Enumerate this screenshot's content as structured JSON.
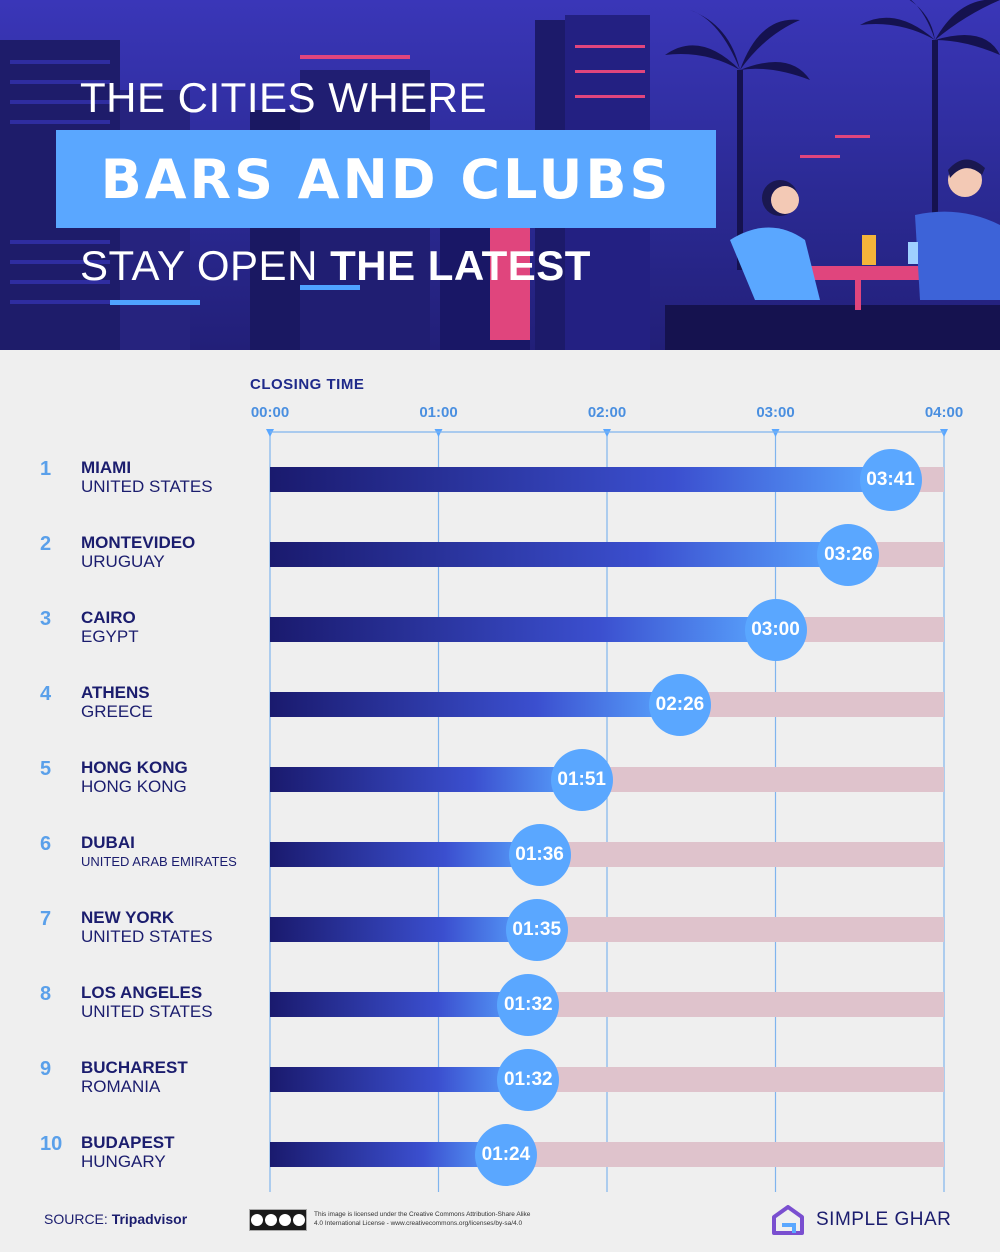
{
  "header": {
    "line1": "THE CITIES WHERE",
    "highlight": "BARS AND CLUBS",
    "line3_prefix": "STAY OPEN ",
    "line3_bold": "THE LATEST"
  },
  "colors": {
    "accent": "#5aa7ff",
    "navy": "#1b1d6e",
    "track": "#dfc3cc",
    "bar_start": "#1a1a6e",
    "header_bg": "#2f2d9e"
  },
  "chart_data": {
    "type": "bar",
    "orientation": "horizontal",
    "xlabel": "CLOSING TIME",
    "x_ticks": [
      "00:00",
      "01:00",
      "02:00",
      "03:00",
      "04:00"
    ],
    "xlim_hours": [
      0,
      4
    ],
    "rows": [
      {
        "rank": "1",
        "city": "MIAMI",
        "country": "UNITED STATES",
        "label": "03:41",
        "hours": 3.683
      },
      {
        "rank": "2",
        "city": "MONTEVIDEO",
        "country": "URUGUAY",
        "label": "03:26",
        "hours": 3.433
      },
      {
        "rank": "3",
        "city": "CAIRO",
        "country": "EGYPT",
        "label": "03:00",
        "hours": 3.0
      },
      {
        "rank": "4",
        "city": "ATHENS",
        "country": "GREECE",
        "label": "02:26",
        "hours": 2.433
      },
      {
        "rank": "5",
        "city": "HONG KONG",
        "country": "HONG KONG",
        "label": "01:51",
        "hours": 1.85
      },
      {
        "rank": "6",
        "city": "DUBAI",
        "country": "UNITED ARAB EMIRATES",
        "label": "01:36",
        "hours": 1.6
      },
      {
        "rank": "7",
        "city": "NEW YORK",
        "country": "UNITED STATES",
        "label": "01:35",
        "hours": 1.583
      },
      {
        "rank": "8",
        "city": "LOS ANGELES",
        "country": "UNITED STATES",
        "label": "01:32",
        "hours": 1.533
      },
      {
        "rank": "9",
        "city": "BUCHAREST",
        "country": "ROMANIA",
        "label": "01:32",
        "hours": 1.533
      },
      {
        "rank": "10",
        "city": "BUDAPEST",
        "country": "HUNGARY",
        "label": "01:24",
        "hours": 1.4
      }
    ]
  },
  "footer": {
    "source_prefix": "SOURCE: ",
    "source_name": "Tripadvisor",
    "license_text": "This image is licensed under the Creative Commons Attribution-Share Alike 4.0 International License - www.creativecommons.org/licenses/by-sa/4.0",
    "brand": "SIMPLE GHAR"
  }
}
